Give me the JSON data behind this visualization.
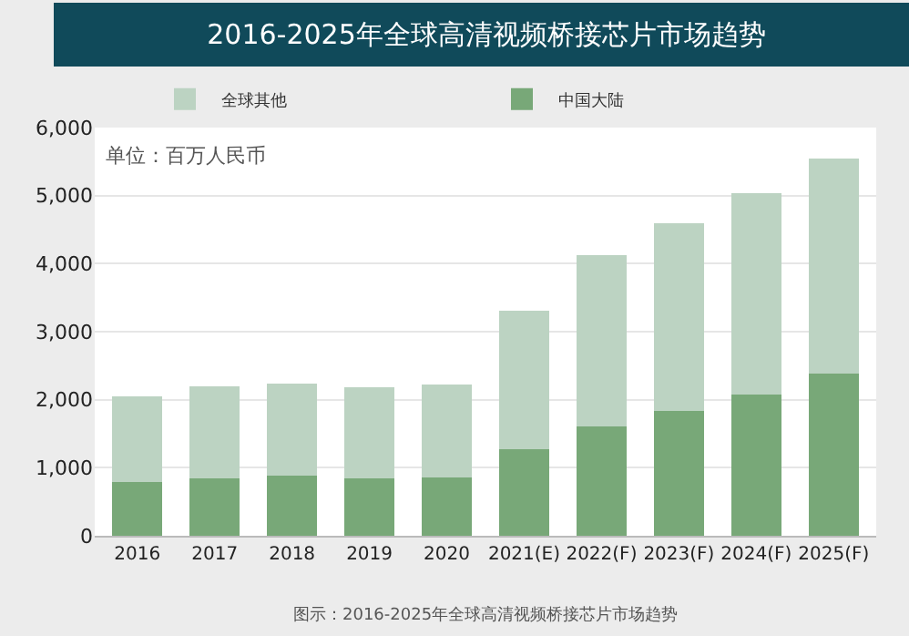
{
  "chart_data": {
    "type": "bar",
    "stacked": true,
    "title": "2016-2025年全球高清视频桥接芯片市场趋势",
    "categories": [
      "2016",
      "2017",
      "2018",
      "2019",
      "2020",
      "2021(E)",
      "2022(F)",
      "2023(F)",
      "2024(F)",
      "2025(F)"
    ],
    "series": [
      {
        "name": "中国大陆",
        "color": "#78a878",
        "values": [
          790,
          850,
          880,
          850,
          860,
          1270,
          1610,
          1830,
          2070,
          2380
        ]
      },
      {
        "name": "全球其他",
        "color": "#bcd3c2",
        "values": [
          1260,
          1340,
          1360,
          1330,
          1360,
          2040,
          2510,
          2760,
          2960,
          3170
        ]
      }
    ],
    "ylim": [
      0,
      6000
    ],
    "yticks": [
      0,
      {
        "value": 1000,
        "label": "1,000"
      },
      {
        "value": 2000,
        "label": "2,000"
      },
      {
        "value": 3000,
        "label": "3,000"
      },
      {
        "value": 4000,
        "label": "4,000"
      },
      {
        "value": 5000,
        "label": "5,000"
      },
      {
        "value": 6000,
        "label": "6,000"
      }
    ],
    "grid": "y",
    "legend": "top",
    "annotations": [
      "单位：百万人民币",
      "图示：2016-2025年全球高清视频桥接芯片市场趋势"
    ]
  }
}
